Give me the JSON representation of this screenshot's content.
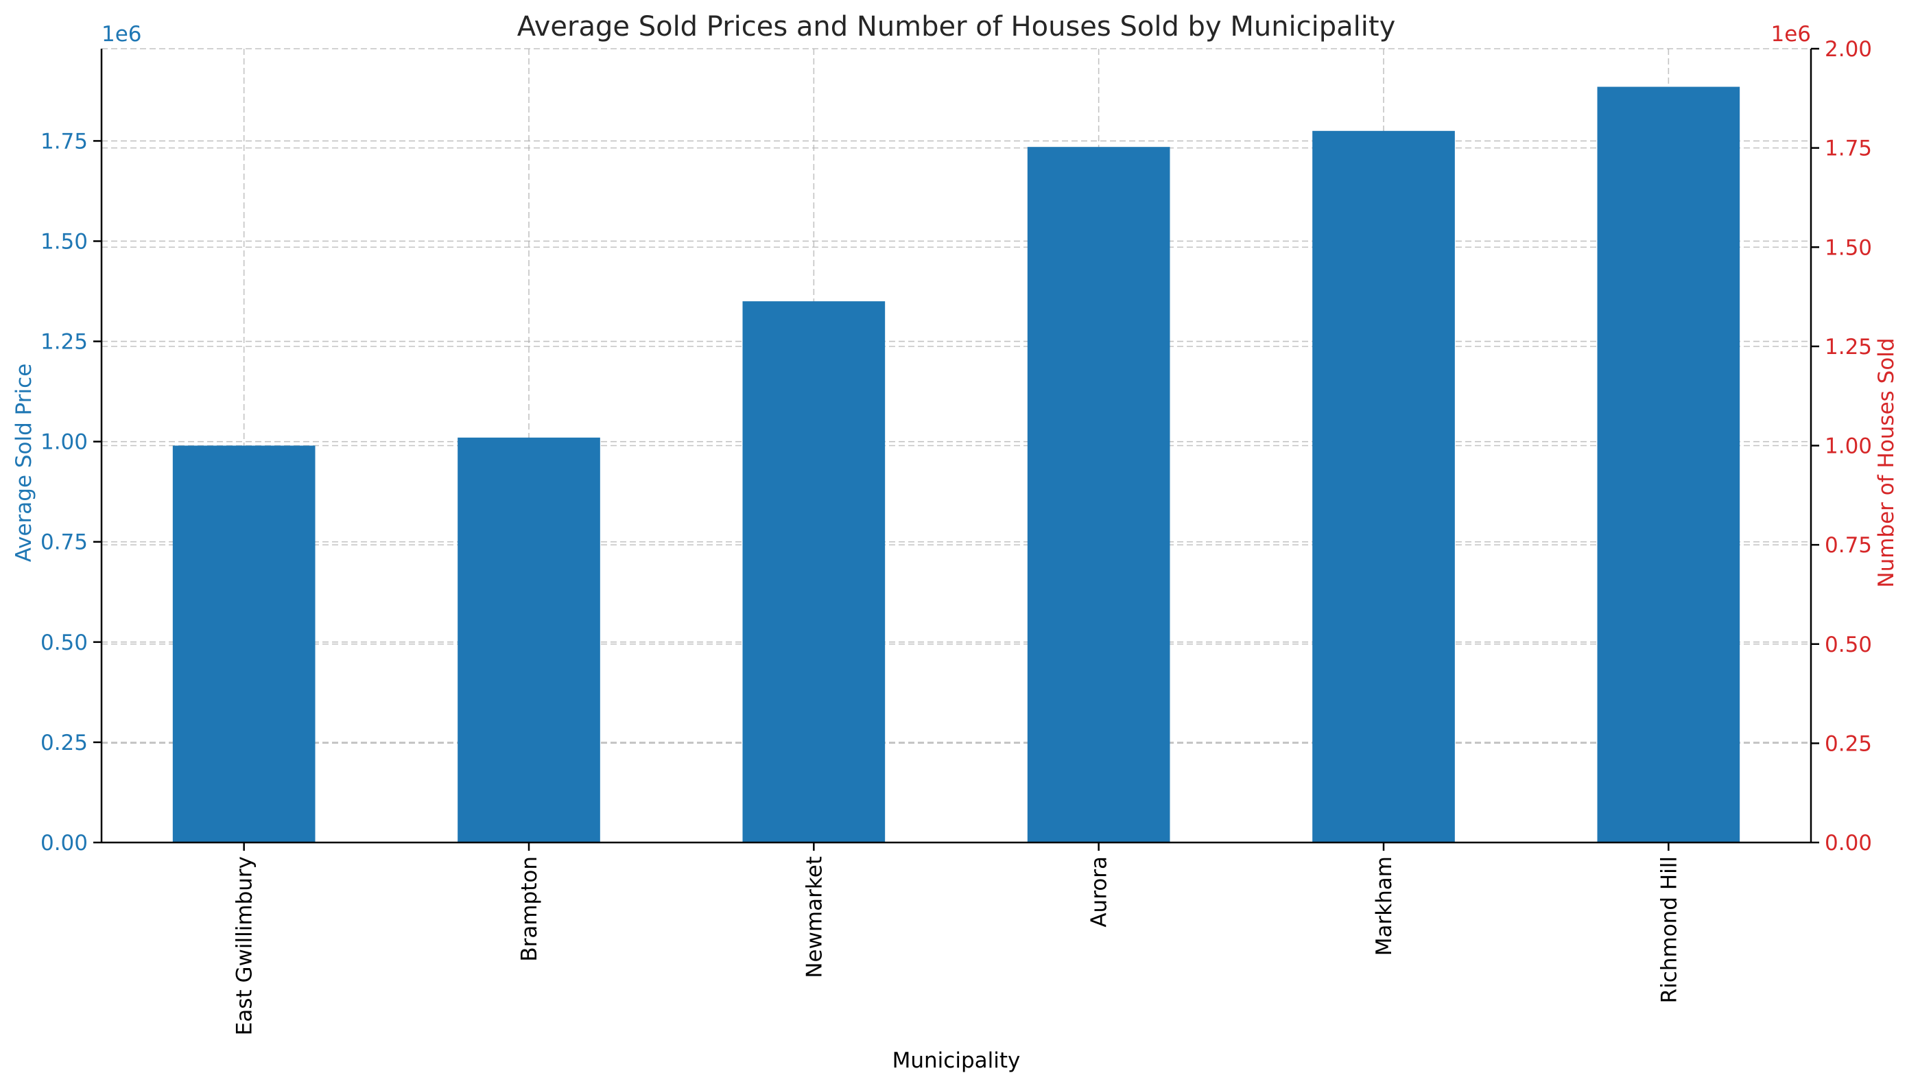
{
  "chart_data": {
    "type": "bar",
    "title": "Average Sold Prices and Number of Houses Sold by Municipality",
    "xlabel": "Municipality",
    "categories": [
      "East Gwillimbury",
      "Brampton",
      "Newmarket",
      "Aurora",
      "Markham",
      "Richmond Hill"
    ],
    "series": [
      {
        "axis": "left",
        "values": [
          990000,
          1010000,
          1350000,
          1735000,
          1775000,
          1885000
        ],
        "color": "#1f77b4"
      }
    ],
    "left_axis": {
      "label": "Average Sold Price",
      "color": "#1f77b4",
      "offset_text": "1e6",
      "ylim": [
        0,
        1980000
      ],
      "ticks": [
        0,
        250000,
        500000,
        750000,
        1000000,
        1250000,
        1500000,
        1750000
      ],
      "tick_labels": [
        "0.00",
        "0.25",
        "0.50",
        "0.75",
        "1.00",
        "1.25",
        "1.50",
        "1.75"
      ]
    },
    "right_axis": {
      "label": "Number of Houses Sold",
      "color": "#d62728",
      "offset_text": "1e6",
      "ylim": [
        0,
        2000000
      ],
      "ticks": [
        0,
        250000,
        500000,
        750000,
        1000000,
        1250000,
        1500000,
        1750000,
        2000000
      ],
      "tick_labels": [
        "0.00",
        "0.25",
        "0.50",
        "0.75",
        "1.00",
        "1.25",
        "1.50",
        "1.75",
        "2.00"
      ]
    },
    "grid": true
  }
}
